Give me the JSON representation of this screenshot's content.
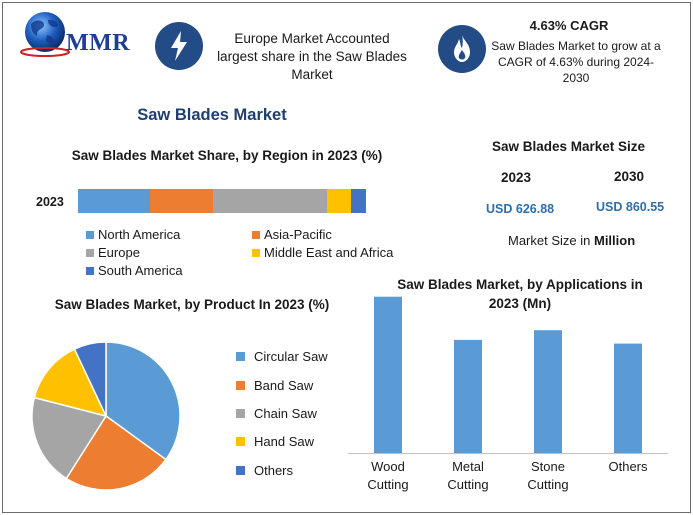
{
  "logo": {
    "text": "MMR"
  },
  "header": {
    "highlight1": {
      "icon": "lightning-bolt-icon",
      "text": "Europe Market Accounted largest share in the Saw Blades Market"
    },
    "highlight2": {
      "icon": "flame-icon",
      "title": "4.63% CAGR",
      "text": "Saw Blades Market to grow at a CAGR of 4.63% during 2024-2030"
    }
  },
  "main_title": "Saw Blades Market",
  "market_size": {
    "title": "Saw Blades Market Size",
    "year1": "2023",
    "year2": "2030",
    "value1": "USD 626.88",
    "value2": "USD 860.55",
    "note_prefix": "Market Size in ",
    "note_bold": "Million"
  },
  "colors": {
    "north_america": "#5b9bd5",
    "asia_pacific": "#ed7d31",
    "europe": "#a5a5a5",
    "mea": "#ffc000",
    "south_america": "#4472c4",
    "bar": "#5b9bd5",
    "badge": "#234b86",
    "title": "#1f3f6e",
    "usd": "#2f6ea8"
  },
  "chart_data": [
    {
      "type": "bar",
      "orientation": "horizontal",
      "stacked": true,
      "title": "Saw Blades Market Share, by Region in 2023 (%)",
      "categories": [
        "2023"
      ],
      "series": [
        {
          "name": "North America",
          "values": [
            24
          ]
        },
        {
          "name": "Asia-Pacific",
          "values": [
            21
          ]
        },
        {
          "name": "Europe",
          "values": [
            38
          ]
        },
        {
          "name": "Middle East and Africa",
          "values": [
            8
          ]
        },
        {
          "name": "South America",
          "values": [
            5
          ]
        }
      ],
      "xlim": [
        0,
        100
      ],
      "legend": "bottom",
      "grid": false
    },
    {
      "type": "pie",
      "title": "Saw Blades Market, by Product In 2023 (%)",
      "categories": [
        "Circular Saw",
        "Band Saw",
        "Chain Saw",
        "Hand Saw",
        "Others"
      ],
      "values": [
        35,
        24,
        20,
        14,
        7
      ],
      "legend": "right"
    },
    {
      "type": "bar",
      "title": "Saw Blades Market, by Applications in 2023 (Mn)",
      "categories": [
        "Wood Cutting",
        "Metal Cutting",
        "Stone Cutting",
        "Others"
      ],
      "values": [
        210,
        152,
        165,
        147
      ],
      "ylim": [
        0,
        215
      ],
      "grid": false
    }
  ]
}
